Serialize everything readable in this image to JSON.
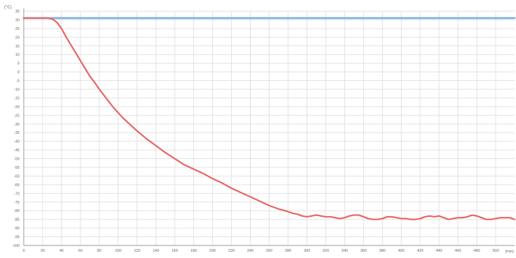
{
  "chart_data": {
    "type": "line",
    "unit_label": "(°C)",
    "xunit_label": "(min)",
    "ylim": [
      -100,
      35
    ],
    "xlim": [
      0,
      520
    ],
    "y_ticks": [
      35,
      30,
      25,
      20,
      15,
      10,
      5,
      0,
      -5,
      -10,
      -15,
      -20,
      -25,
      -30,
      -35,
      -40,
      -45,
      -50,
      -55,
      -60,
      -65,
      -70,
      -75,
      -80,
      -85,
      -90,
      -95,
      -100
    ],
    "x_ticks": [
      0,
      20,
      40,
      60,
      80,
      100,
      120,
      140,
      160,
      180,
      200,
      220,
      240,
      260,
      280,
      300,
      320,
      340,
      360,
      380,
      400,
      420,
      440,
      460,
      480,
      500
    ],
    "x_tick_labels": [
      "0",
      "20",
      "40",
      "60",
      "80",
      "100",
      "120",
      "140",
      "160",
      "180",
      "200",
      "220",
      "240",
      "260",
      "280",
      "300",
      "320",
      "340",
      "360",
      "380",
      "400",
      "420",
      "440",
      "460",
      "480",
      "500"
    ],
    "grid": true,
    "colors": {
      "setpoint": "#7aaee0",
      "actual": "#e86464",
      "grid": "#e2e2e2",
      "axis": "#9a9a9a",
      "text": "#666666"
    },
    "series": [
      {
        "key": "setpoint",
        "x": [
          0,
          520
        ],
        "y": [
          31,
          31
        ]
      },
      {
        "key": "actual",
        "x": [
          0,
          20,
          25,
          30,
          33,
          36,
          40,
          45,
          50,
          55,
          60,
          65,
          70,
          75,
          80,
          85,
          90,
          95,
          100,
          105,
          110,
          120,
          130,
          140,
          150,
          160,
          170,
          180,
          190,
          200,
          210,
          220,
          230,
          240,
          250,
          260,
          270,
          280,
          285,
          290,
          295,
          300,
          305,
          310,
          315,
          320,
          325,
          330,
          335,
          340,
          345,
          350,
          355,
          360,
          365,
          370,
          375,
          380,
          385,
          390,
          395,
          400,
          405,
          410,
          415,
          420,
          425,
          430,
          435,
          440,
          445,
          450,
          455,
          460,
          465,
          470,
          475,
          480,
          485,
          490,
          495,
          500,
          505,
          510,
          515,
          520
        ],
        "y": [
          31,
          31,
          31,
          30.5,
          29.5,
          28,
          25,
          20,
          15.5,
          11,
          6.5,
          2,
          -2.5,
          -6,
          -10,
          -13.5,
          -17,
          -20.5,
          -23.5,
          -26.5,
          -29,
          -34,
          -38.5,
          -42.5,
          -46.5,
          -50,
          -53.5,
          -56,
          -58.5,
          -61.5,
          -64,
          -67,
          -69.5,
          -72,
          -74.5,
          -77,
          -79,
          -80.5,
          -81.5,
          -82,
          -83,
          -83.5,
          -83,
          -82.5,
          -83,
          -83.5,
          -83.5,
          -84,
          -84.5,
          -84,
          -83,
          -82.5,
          -82.5,
          -83.5,
          -84.5,
          -85,
          -85,
          -84.5,
          -83.5,
          -83.5,
          -84,
          -84.5,
          -84.5,
          -85,
          -85,
          -84.5,
          -83.5,
          -83,
          -83.5,
          -83,
          -84,
          -85,
          -84.5,
          -84,
          -84,
          -83.5,
          -82.5,
          -83,
          -84,
          -85,
          -85,
          -84.5,
          -84,
          -84,
          -84,
          -85
        ]
      }
    ]
  }
}
